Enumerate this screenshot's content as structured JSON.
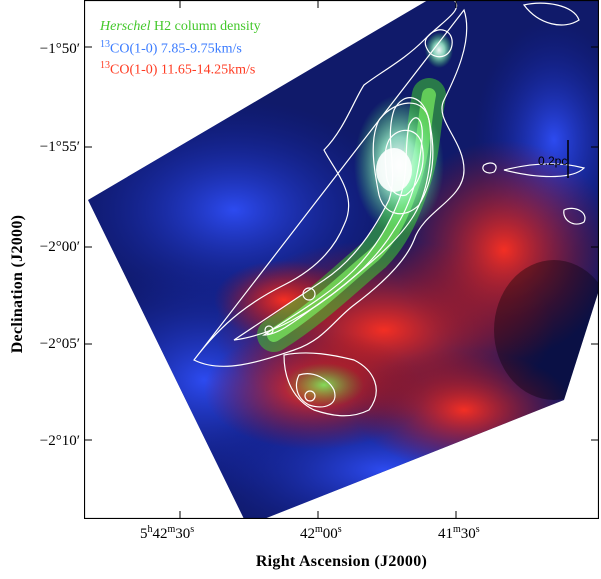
{
  "legend": {
    "h2_prefix": "Herschel",
    "h2_rest": " H2 column density",
    "blue_iso": "13",
    "blue_text": "CO(1-0) 7.85-9.75km/s",
    "red_iso": "13",
    "red_text": "CO(1-0) 11.65-14.25km/s"
  },
  "scale_bar_label": "0.2pc",
  "axes": {
    "ylabel": "Declination (J2000)",
    "xlabel": "Right Ascension (J2000)",
    "yticks": [
      "−1°50′",
      "−1°55′",
      "−2°00′",
      "−2°05′",
      "−2°10′"
    ],
    "xticks": [
      {
        "h": "5",
        "hs": "h",
        "m": "42",
        "ms": "m",
        "s": "30",
        "ss": "s"
      },
      {
        "h": "",
        "hs": "",
        "m": "42",
        "ms": "m",
        "s": "00",
        "ss": "s"
      },
      {
        "h": "",
        "hs": "",
        "m": "41",
        "ms": "m",
        "s": "30",
        "ss": "s"
      }
    ]
  },
  "colors": {
    "h2_green": "#43c82a",
    "co_blue": "#2a4bd8",
    "co_red": "#e02a1a",
    "contour": "#ffffff"
  }
}
